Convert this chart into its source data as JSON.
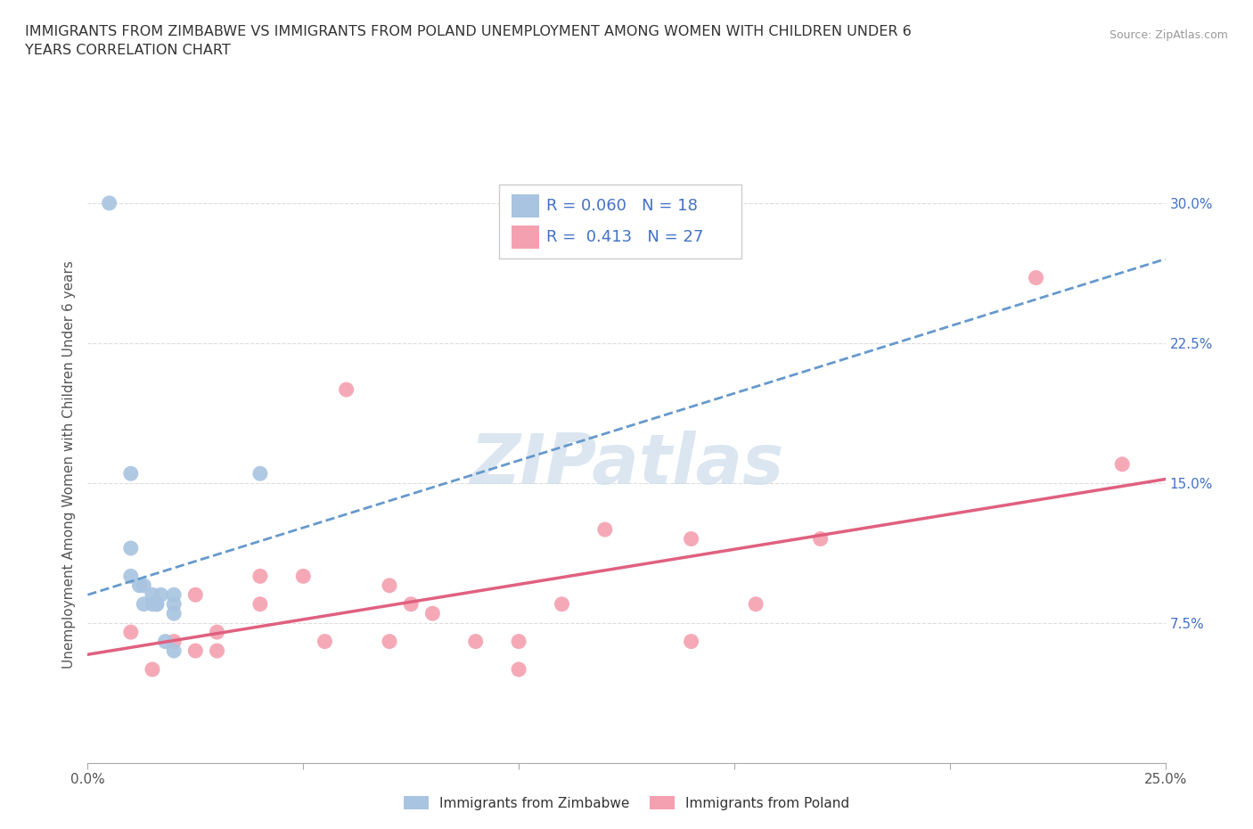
{
  "title": "IMMIGRANTS FROM ZIMBABWE VS IMMIGRANTS FROM POLAND UNEMPLOYMENT AMONG WOMEN WITH CHILDREN UNDER 6\nYEARS CORRELATION CHART",
  "source": "Source: ZipAtlas.com",
  "ylabel": "Unemployment Among Women with Children Under 6 years",
  "xlim": [
    0.0,
    0.25
  ],
  "ylim": [
    0.0,
    0.32
  ],
  "x_ticks": [
    0.0,
    0.05,
    0.1,
    0.15,
    0.2,
    0.25
  ],
  "y_ticks": [
    0.0,
    0.075,
    0.15,
    0.225,
    0.3
  ],
  "legend1_label": "Immigrants from Zimbabwe",
  "legend2_label": "Immigrants from Poland",
  "r1": "0.060",
  "n1": "18",
  "r2": "0.413",
  "n2": "27",
  "color_zim": "#a8c4e0",
  "color_pol": "#f4a0b0",
  "color_zim_line": "#6699cc",
  "color_pol_line": "#e06080",
  "color_label": "#4472c4",
  "zimbabwe_x": [
    0.005,
    0.01,
    0.01,
    0.01,
    0.012,
    0.013,
    0.013,
    0.015,
    0.015,
    0.016,
    0.016,
    0.017,
    0.018,
    0.02,
    0.02,
    0.02,
    0.02,
    0.04
  ],
  "zimbabwe_y": [
    0.3,
    0.155,
    0.115,
    0.1,
    0.095,
    0.095,
    0.085,
    0.09,
    0.085,
    0.085,
    0.085,
    0.09,
    0.065,
    0.09,
    0.085,
    0.08,
    0.06,
    0.155
  ],
  "poland_x": [
    0.01,
    0.015,
    0.02,
    0.025,
    0.025,
    0.03,
    0.03,
    0.04,
    0.04,
    0.05,
    0.055,
    0.06,
    0.07,
    0.07,
    0.075,
    0.08,
    0.09,
    0.1,
    0.1,
    0.11,
    0.12,
    0.14,
    0.14,
    0.155,
    0.17,
    0.22,
    0.24
  ],
  "poland_y": [
    0.07,
    0.05,
    0.065,
    0.09,
    0.06,
    0.07,
    0.06,
    0.1,
    0.085,
    0.1,
    0.065,
    0.2,
    0.065,
    0.095,
    0.085,
    0.08,
    0.065,
    0.05,
    0.065,
    0.085,
    0.125,
    0.12,
    0.065,
    0.085,
    0.12,
    0.26,
    0.16
  ],
  "background_color": "#ffffff",
  "grid_color": "#dddddd",
  "watermark": "ZIPatlas",
  "watermark_color": "#ccdcec",
  "zim_line_x0": 0.0,
  "zim_line_y0": 0.09,
  "zim_line_x1": 0.25,
  "zim_line_y1": 0.27,
  "pol_line_x0": 0.0,
  "pol_line_y0": 0.058,
  "pol_line_x1": 0.25,
  "pol_line_y1": 0.152
}
